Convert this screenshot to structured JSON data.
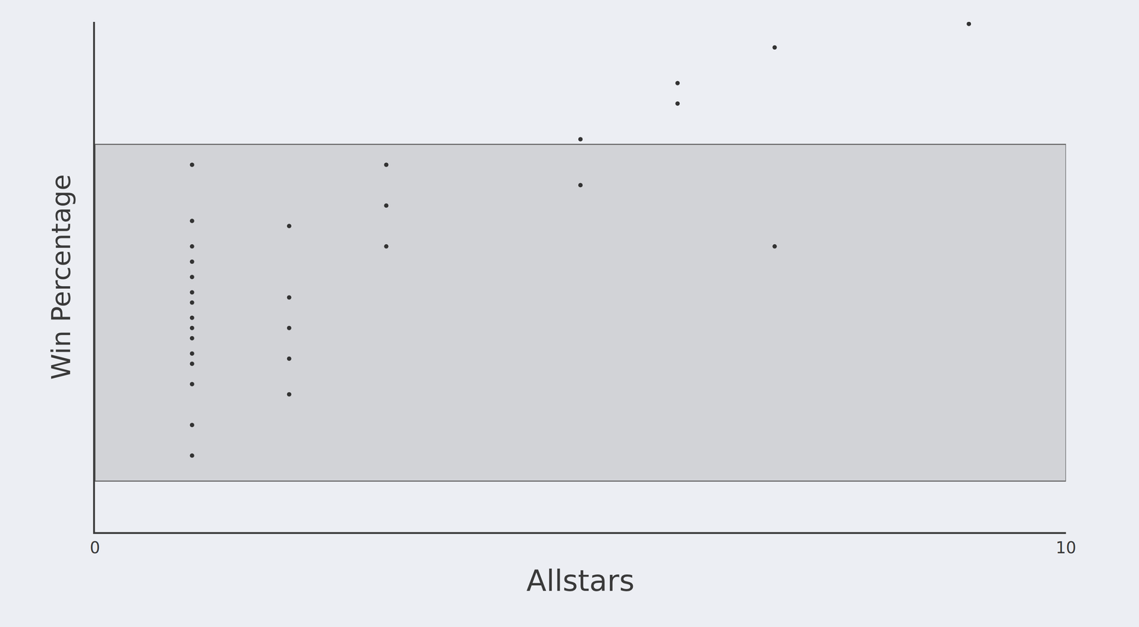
{
  "chart_data": {
    "type": "scatter",
    "x_label": "Allstars",
    "y_label": "Win Percentage",
    "x": [
      1,
      1,
      1,
      1,
      1,
      1,
      1,
      1,
      1,
      1,
      1,
      1,
      1,
      1,
      1,
      2,
      2,
      2,
      2,
      2,
      3,
      3,
      3,
      5,
      5,
      6,
      6,
      7,
      7,
      9
    ],
    "values": [
      72,
      61,
      56,
      53,
      50,
      47,
      45,
      42,
      40,
      38,
      35,
      33,
      29,
      21,
      15,
      60,
      46,
      40,
      34,
      27,
      72,
      64,
      56,
      77,
      68,
      88,
      84,
      95,
      56,
      99.6
    ],
    "color": "#333333",
    "marker": "circle",
    "shaded_range": [
      10,
      76
    ],
    "xlim": [
      0,
      10
    ],
    "xticks": [
      0,
      10
    ],
    "ylim": [
      0,
      100
    ],
    "yticks": [],
    "tick_labels": "x",
    "grid": false
  }
}
